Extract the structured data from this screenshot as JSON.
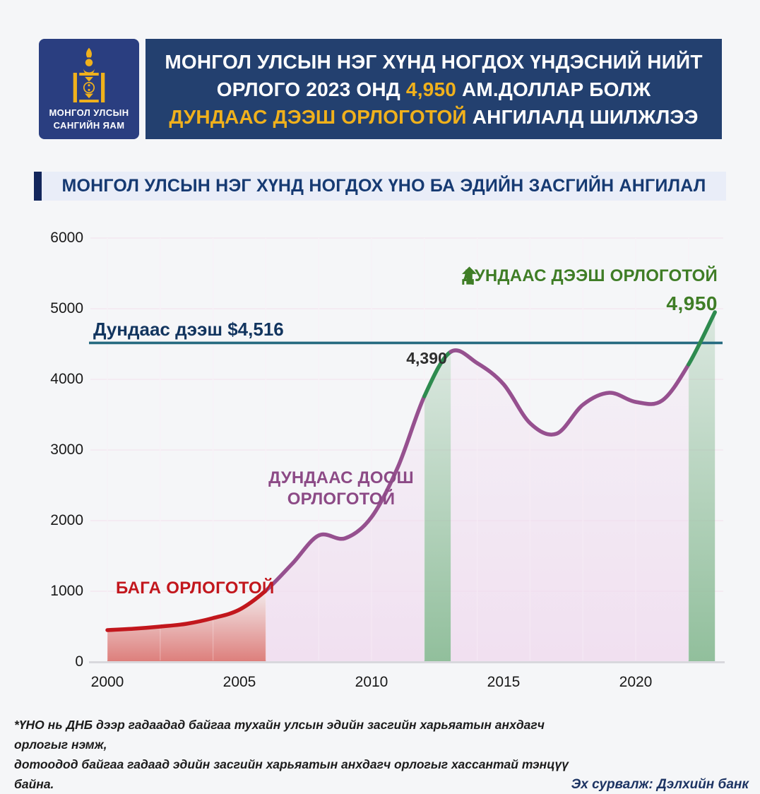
{
  "header": {
    "logo": {
      "bg": "#2a3e80",
      "emblem_color": "#f0b11c",
      "lines": [
        "МОНГОЛ УЛСЫН",
        "САНГИЙН ЯАМ"
      ]
    },
    "banner": {
      "bg": "#23406f",
      "lines": [
        [
          {
            "text": "МОНГОЛ УЛСЫН НЭГ ХҮНД НОГДОХ ҮНДЭСНИЙ НИЙТ",
            "color": "#ffffff"
          }
        ],
        [
          {
            "text": "ОРЛОГО 2023 ОНД ",
            "color": "#ffffff"
          },
          {
            "text": "4,950",
            "color": "#f0b11c"
          },
          {
            "text": " АМ.ДОЛЛАР БОЛЖ",
            "color": "#ffffff"
          }
        ],
        [
          {
            "text": "ДУНДААС ДЭЭШ ОРЛОГОТОЙ",
            "color": "#f0b11c"
          },
          {
            "text": " АНГИЛАЛД ШИЛЖЛЭЭ",
            "color": "#ffffff"
          }
        ]
      ]
    }
  },
  "section_title": {
    "text": "МОНГОЛ УЛСЫН НЭГ ХҮНД НОГДОХ ҮНО БА ЭДИЙН ЗАСГИЙН АНГИЛАЛ",
    "accent_color": "#13265c",
    "bg": "#e9edf8",
    "color": "#163a72"
  },
  "chart_data": {
    "type": "line",
    "title": "МОНГОЛ УЛСЫН НЭГ ХҮНД НОГДОХ ҮНО БА ЭДИЙН ЗАСГИЙН АНГИЛАЛ",
    "x": [
      2000,
      2001,
      2002,
      2003,
      2004,
      2005,
      2006,
      2007,
      2008,
      2009,
      2010,
      2011,
      2012,
      2013,
      2014,
      2015,
      2016,
      2017,
      2018,
      2019,
      2020,
      2021,
      2022,
      2023
    ],
    "values": [
      450,
      470,
      500,
      540,
      620,
      740,
      1010,
      1390,
      1790,
      1750,
      2050,
      2760,
      3760,
      4390,
      4230,
      3930,
      3380,
      3230,
      3640,
      3810,
      3680,
      3700,
      4210,
      4950
    ],
    "ylim": [
      0,
      6000
    ],
    "yticks": [
      0,
      1000,
      2000,
      3000,
      4000,
      5000,
      6000
    ],
    "xticks": [
      2000,
      2005,
      2010,
      2015,
      2020
    ],
    "grid": true,
    "threshold": {
      "value": 4516,
      "label": "Дундаас дээш $4,516",
      "color": "#266b81",
      "label_color": "#12355f"
    },
    "segments": [
      {
        "from": 2000,
        "to": 2006,
        "color": "#c2171d",
        "fill": "red",
        "class": "low-income"
      },
      {
        "from": 2006,
        "to": 2012,
        "color": "#96508f",
        "fill": "pink",
        "class": "lower-middle-income"
      },
      {
        "from": 2012,
        "to": 2013,
        "color": "#2e8b4f",
        "fill": "green",
        "class": "upper-middle-band-2012"
      },
      {
        "from": 2013,
        "to": 2022,
        "color": "#96508f",
        "fill": "pink",
        "class": "lower-middle-income"
      },
      {
        "from": 2022,
        "to": 2023,
        "color": "#2e8b4f",
        "fill": "green",
        "class": "upper-middle-band-2023"
      }
    ],
    "colors": {
      "axis_line": "#d8d8dd",
      "grid_line": "#f3e7f0",
      "red_fill_bottom": "#d96a66",
      "pink_fill_bottom": "#f0dcef",
      "green_fill_bottom": "#8cbc97"
    },
    "annotations": {
      "low_income": {
        "text": "БАГА ОРЛОГОТОЙ",
        "color": "#c2171d"
      },
      "lower_middle": {
        "lines": [
          "ДУНДААС ДООШ",
          "ОРЛОГОТОЙ"
        ],
        "color": "#8c4a86"
      },
      "upper_middle_legend": {
        "text": "ДУНДААС ДЭЭШ ОРЛОГОТОЙ",
        "color": "#3f7d26",
        "icon": "up-arrow-icon"
      },
      "peak_label": {
        "text": "4,390",
        "year": 2013,
        "color": "#2f2f2f"
      },
      "end_label": {
        "text": "4,950",
        "year": 2023,
        "color": "#3f7d26"
      }
    }
  },
  "footer": {
    "note_lines": [
      "*ҮНО нь ДНБ дээр гадаадад байгаа тухайн улсын эдийн засгийн харьяатын анхдагч орлогыг нэмж,",
      "дотоодод байгаа гадаад эдийн засгийн харьяатын анхдагч орлогыг хассантай тэнцүү байна."
    ],
    "source": "Эх сурвалж: Дэлхийн банк",
    "source_color": "#1d3463"
  }
}
